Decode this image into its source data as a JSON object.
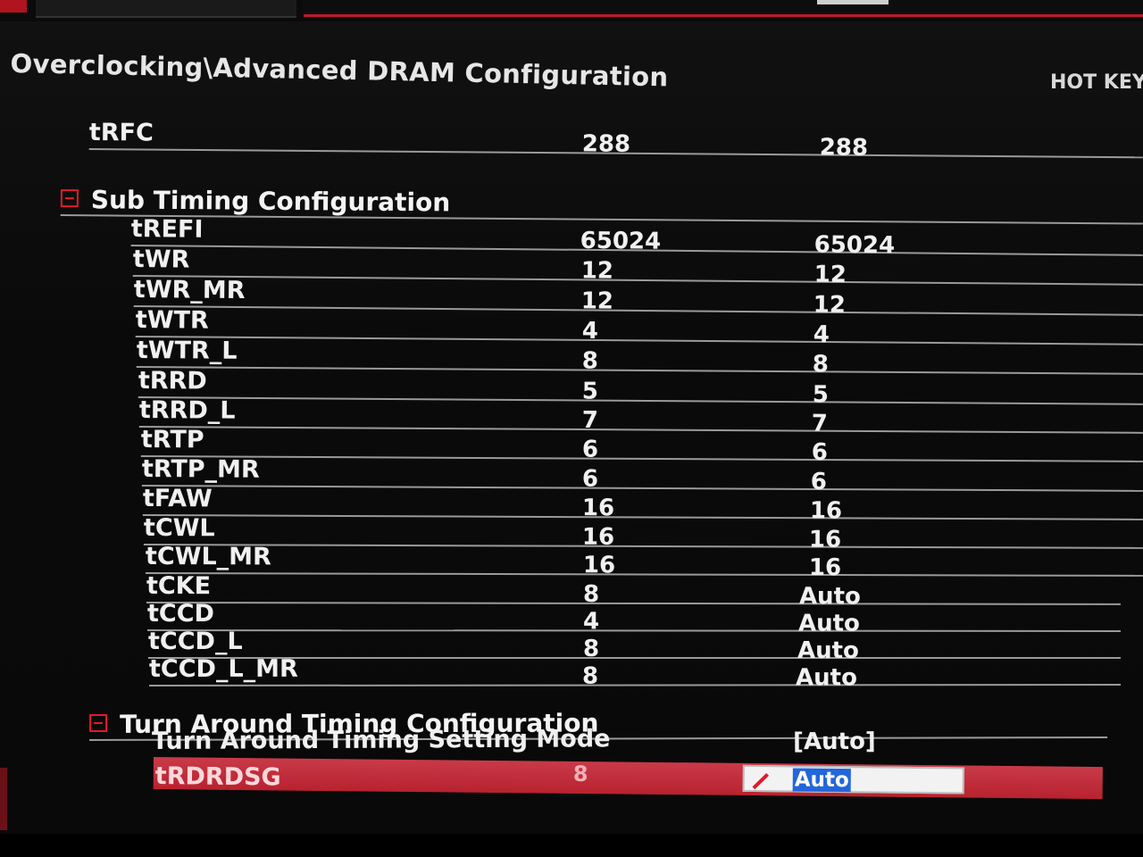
{
  "window": {
    "breadcrumb": "Overclocking\\Advanced DRAM Configuration",
    "hotkey_label": "HOT KEY"
  },
  "top_row": {
    "label": "tRFC",
    "current": "288",
    "setting": "288"
  },
  "sub_timing": {
    "header": "Sub Timing Configuration",
    "rows": [
      {
        "label": "tREFI",
        "current": "65024",
        "setting": "65024"
      },
      {
        "label": "tWR",
        "current": "12",
        "setting": "12"
      },
      {
        "label": "tWR_MR",
        "current": "12",
        "setting": "12"
      },
      {
        "label": "tWTR",
        "current": "4",
        "setting": "4"
      },
      {
        "label": "tWTR_L",
        "current": "8",
        "setting": "8"
      },
      {
        "label": "tRRD",
        "current": "5",
        "setting": "5"
      },
      {
        "label": "tRRD_L",
        "current": "7",
        "setting": "7"
      },
      {
        "label": "tRTP",
        "current": "6",
        "setting": "6"
      },
      {
        "label": "tRTP_MR",
        "current": "6",
        "setting": "6"
      },
      {
        "label": "tFAW",
        "current": "16",
        "setting": "16"
      },
      {
        "label": "tCWL",
        "current": "16",
        "setting": "16"
      },
      {
        "label": "tCWL_MR",
        "current": "16",
        "setting": "16"
      },
      {
        "label": "tCKE",
        "current": "8",
        "setting": "Auto"
      },
      {
        "label": "tCCD",
        "current": "4",
        "setting": "Auto"
      },
      {
        "label": "tCCD_L",
        "current": "8",
        "setting": "Auto"
      },
      {
        "label": "tCCD_L_MR",
        "current": "8",
        "setting": "Auto"
      }
    ]
  },
  "turn_around": {
    "header": "Turn Around Timing Configuration",
    "mode_row": {
      "label": "Turn Around Timing Setting Mode",
      "setting": "[Auto]"
    },
    "selected_row": {
      "label": "tRDRDSG",
      "current": "8",
      "setting": "Auto"
    }
  },
  "colors": {
    "accent": "#e0192b",
    "selection": "#c0283a",
    "edit_highlight": "#2266dd"
  }
}
